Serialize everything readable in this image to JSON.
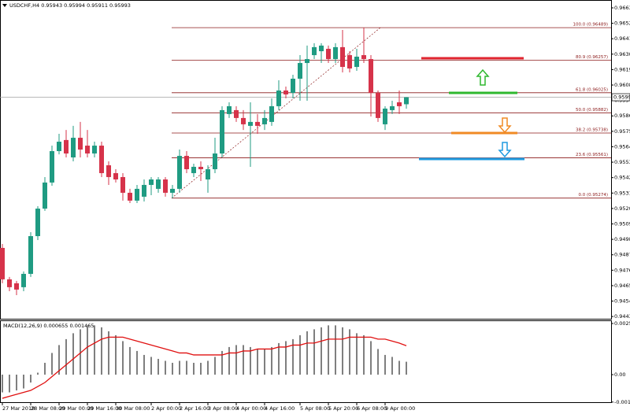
{
  "chart_data": [
    {
      "type": "candlestick",
      "title": "USDCHF,H4 0.95943 0.95994 0.95911 0.95993",
      "categories": [
        "27 Mar 2018",
        null,
        null,
        null,
        "28 Mar 08:00",
        null,
        null,
        null,
        "29 Mar 00:00",
        null,
        null,
        null,
        "29 Mar 16:00",
        null,
        null,
        null,
        "30 Mar 08:00",
        null,
        null,
        null,
        null,
        "2 Apr 00:00",
        null,
        null,
        null,
        "2 Apr 16:00",
        null,
        null,
        null,
        "3 Apr 08:00",
        null,
        null,
        null,
        "4 Apr 00:00",
        null,
        null,
        null,
        "4 Apr 16:00",
        null,
        null,
        null,
        null,
        "5 Apr 08:00",
        null,
        null,
        null,
        "5 Apr 20:00",
        null,
        null,
        null,
        "6 Apr 08:00",
        null,
        null,
        null,
        "9 Apr 00:00",
        null,
        null,
        null
      ],
      "open": [
        0.94919,
        0.94695,
        0.94667,
        0.94639,
        0.94734,
        0.95003,
        0.95199,
        0.95385,
        0.95609,
        0.95688,
        0.95564,
        0.95704,
        0.95648,
        0.95592,
        0.95648,
        0.95508,
        0.95452,
        0.95424,
        0.95312,
        0.95256,
        0.95284,
        0.95368,
        0.9534,
        0.95407,
        0.95312,
        0.9534,
        0.95575,
        0.95452,
        0.95497,
        0.95407,
        0.9548,
        0.95592,
        0.95873,
        0.95901,
        0.95845,
        0.95789,
        0.95817,
        0.958,
        0.95817,
        0.95929,
        0.96041,
        0.96024,
        0.96125,
        0.96237,
        0.96293,
        0.96321,
        0.96338,
        0.96265,
        0.9635,
        0.96293,
        0.96209,
        0.96293,
        0.96265,
        0.96024,
        0.958,
        0.95901,
        0.95957,
        0.95943
      ],
      "high": [
        0.94947,
        0.94712,
        0.94684,
        0.94751,
        0.95031,
        0.95216,
        0.95424,
        0.95648,
        0.95732,
        0.9576,
        0.95789,
        0.95817,
        0.9576,
        0.95676,
        0.95676,
        0.95536,
        0.9548,
        0.95452,
        0.9534,
        0.95368,
        0.95407,
        0.95424,
        0.95424,
        0.95424,
        0.95368,
        0.9562,
        0.95609,
        0.95519,
        0.95536,
        0.95508,
        0.95704,
        0.95929,
        0.95957,
        0.95929,
        0.95901,
        0.95957,
        0.95873,
        0.95901,
        0.95985,
        0.96114,
        0.96069,
        0.96153,
        0.96293,
        0.96361,
        0.96378,
        0.96378,
        0.96361,
        0.96378,
        0.96473,
        0.96321,
        0.96338,
        0.96489,
        0.96293,
        0.96041,
        0.95929,
        0.95968,
        0.96041,
        0.95994
      ],
      "low": [
        0.94667,
        0.9461,
        0.94582,
        0.9461,
        0.94712,
        0.94975,
        0.95183,
        0.95362,
        0.95586,
        0.95564,
        0.95536,
        0.95564,
        0.95564,
        0.95564,
        0.95424,
        0.95368,
        0.95385,
        0.95256,
        0.95239,
        0.95239,
        0.9525,
        0.95295,
        0.95312,
        0.95284,
        0.95274,
        0.95312,
        0.95452,
        0.95424,
        0.95396,
        0.95312,
        0.95452,
        0.95564,
        0.95845,
        0.95817,
        0.9576,
        0.95497,
        0.95732,
        0.9576,
        0.95789,
        0.95901,
        0.95985,
        0.95985,
        0.95968,
        0.95968,
        0.96265,
        0.96237,
        0.96237,
        0.96237,
        0.9617,
        0.9617,
        0.96181,
        0.96237,
        0.95856,
        0.95817,
        0.9576,
        0.95873,
        0.95873,
        0.95911
      ],
      "close": [
        0.94695,
        0.94639,
        0.94622,
        0.94734,
        0.95003,
        0.95199,
        0.95385,
        0.95609,
        0.95676,
        0.95592,
        0.95704,
        0.9562,
        0.95592,
        0.95648,
        0.95452,
        0.95424,
        0.95407,
        0.95312,
        0.95256,
        0.9534,
        0.95368,
        0.95407,
        0.95407,
        0.95312,
        0.9534,
        0.95575,
        0.9548,
        0.95497,
        0.9548,
        0.9548,
        0.95592,
        0.95901,
        0.95929,
        0.95845,
        0.958,
        0.95817,
        0.95789,
        0.95845,
        0.95929,
        0.96041,
        0.96013,
        0.96125,
        0.96237,
        0.96265,
        0.9635,
        0.96361,
        0.96265,
        0.9635,
        0.96209,
        0.96198,
        0.96282,
        0.96265,
        0.96024,
        0.95845,
        0.95912,
        0.95929,
        0.95929,
        0.95993
      ],
      "up_color": "#1f9b82",
      "down_color": "#d6334a",
      "ylim": [
        0.94414,
        0.96686
      ],
      "yticks": [
        {
          "value": 0.9663,
          "label": "0.96630"
        },
        {
          "value": 0.9652,
          "label": "0.96520"
        },
        {
          "value": 0.9641,
          "label": "0.96410"
        },
        {
          "value": 0.963,
          "label": "0.96300"
        },
        {
          "value": 0.9619,
          "label": "0.96190"
        },
        {
          "value": 0.9608,
          "label": "0.96080"
        },
        {
          "value": 0.9597,
          "label": "0.95970"
        },
        {
          "value": 0.9586,
          "label": "0.95860"
        },
        {
          "value": 0.9575,
          "label": "0.95750"
        },
        {
          "value": 0.9564,
          "label": "0.95640"
        },
        {
          "value": 0.9553,
          "label": "0.95530"
        },
        {
          "value": 0.9542,
          "label": "0.95420"
        },
        {
          "value": 0.9531,
          "label": "0.95310"
        },
        {
          "value": 0.952,
          "label": "0.95200"
        },
        {
          "value": 0.9509,
          "label": "0.95090"
        },
        {
          "value": 0.9498,
          "label": "0.94980"
        },
        {
          "value": 0.9487,
          "label": "0.94870"
        },
        {
          "value": 0.9476,
          "label": "0.94760"
        },
        {
          "value": 0.9465,
          "label": "0.94650"
        },
        {
          "value": 0.9454,
          "label": "0.94540"
        },
        {
          "value": 0.9443,
          "label": "0.94430"
        }
      ],
      "last_price": 0.95993,
      "fib_color": "#8b1a1a",
      "fib_levels": [
        {
          "value": 0.96489,
          "label": "100.0 (0.96489)"
        },
        {
          "value": 0.96257,
          "label": "80.9 (0.96257)"
        },
        {
          "value": 0.96025,
          "label": "61.8 (0.96025)"
        },
        {
          "value": 0.95882,
          "label": "50.0 (0.95882)"
        },
        {
          "value": 0.95738,
          "label": "38.2 (0.95738)"
        },
        {
          "value": 0.95561,
          "label": "23.6 (0.95561)"
        },
        {
          "value": 0.95274,
          "label": "0.0 (0.95274)"
        }
      ]
    },
    {
      "type": "macd",
      "title": "MACD(12,26,9) 0.000655 0.001465",
      "histogram": {
        "color": "#7f7f7f",
        "values": [
          -0.0009,
          -0.0009,
          -0.0008,
          -0.0007,
          -0.0004,
          0.0001,
          0.0006,
          0.0011,
          0.0015,
          0.0018,
          0.0021,
          0.0023,
          0.0025,
          0.0025,
          0.0024,
          0.0022,
          0.002,
          0.0017,
          0.0014,
          0.0012,
          0.001,
          0.0009,
          0.0008,
          0.0007,
          0.0006,
          0.0007,
          0.0007,
          0.0006,
          0.0006,
          0.0007,
          0.0009,
          0.0012,
          0.0014,
          0.0015,
          0.0015,
          0.0014,
          0.0013,
          0.0013,
          0.0014,
          0.0016,
          0.0017,
          0.0018,
          0.002,
          0.0022,
          0.0023,
          0.0024,
          0.0025,
          0.0025,
          0.0024,
          0.0023,
          0.0021,
          0.002,
          0.0017,
          0.0013,
          0.001,
          0.0009,
          0.0007,
          0.000655
        ]
      },
      "signal": {
        "color": "#e01010",
        "values": [
          -0.0012,
          -0.0011,
          -0.001,
          -0.0009,
          -0.0008,
          -0.0006,
          -0.0004,
          -0.0001,
          0.0002,
          0.0005,
          0.0008,
          0.0011,
          0.0014,
          0.0016,
          0.0018,
          0.0019,
          0.0019,
          0.0019,
          0.0018,
          0.0017,
          0.0016,
          0.0015,
          0.0014,
          0.0013,
          0.0012,
          0.0011,
          0.0011,
          0.001,
          0.001,
          0.001,
          0.001,
          0.001,
          0.0011,
          0.0011,
          0.0012,
          0.0012,
          0.0013,
          0.0013,
          0.0013,
          0.0014,
          0.0014,
          0.0015,
          0.0015,
          0.0016,
          0.0016,
          0.0017,
          0.0018,
          0.0018,
          0.0018,
          0.0019,
          0.0019,
          0.0019,
          0.0019,
          0.0018,
          0.0018,
          0.0017,
          0.0016,
          0.001465
        ]
      },
      "ylim": [
        -0.001437,
        0.002754
      ],
      "yticks": [
        0.002594,
        {
          "value": 0,
          "label": "0.00"
        },
        -0.001391
      ]
    }
  ]
}
